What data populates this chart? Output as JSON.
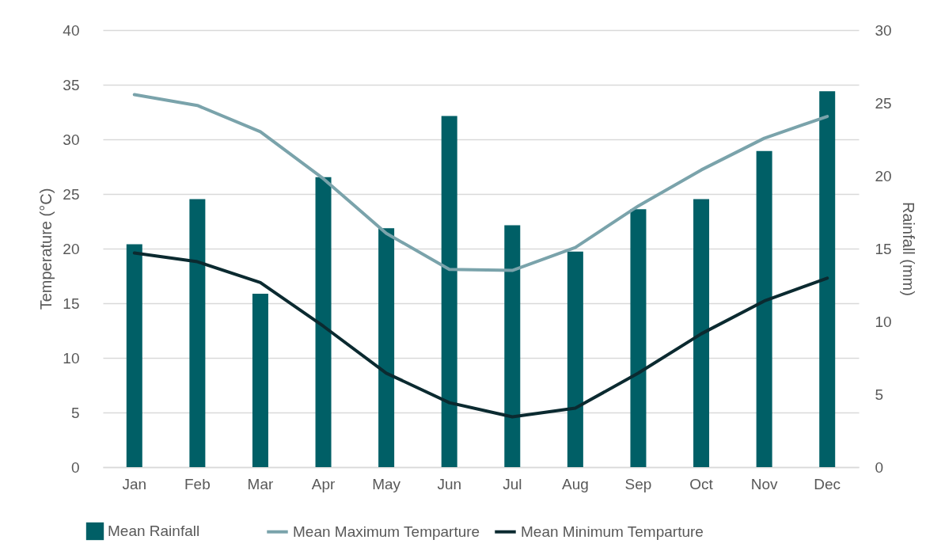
{
  "chart_data": {
    "type": "bar",
    "categories": [
      "Jan",
      "Feb",
      "Mar",
      "Apr",
      "May",
      "Jun",
      "Jul",
      "Aug",
      "Sep",
      "Oct",
      "Nov",
      "Dec"
    ],
    "ylabel": "Temperature  (°C)",
    "y2label": "Rainfall (mm)",
    "ylim": [
      0,
      40
    ],
    "yticks": [
      0,
      5,
      10,
      15,
      20,
      25,
      30,
      35,
      40
    ],
    "y2lim": [
      0,
      30
    ],
    "y2ticks": [
      0,
      5,
      10,
      15,
      20,
      25,
      30
    ],
    "grid": "y",
    "legend": "bottom",
    "marker": "none",
    "line_style": "solid",
    "series": [
      {
        "name": "Mean Rainfall",
        "axis": "y2",
        "color": "#005f66",
        "values": [
          15.3,
          18.4,
          11.9,
          19.9,
          16.4,
          24.1,
          16.6,
          14.8,
          17.7,
          18.4,
          21.7,
          25.8
        ]
      },
      {
        "name": "Mean Maximum Temparture",
        "type": "line",
        "color": "#7aa3ab",
        "values": [
          34.1,
          33.1,
          30.7,
          26.4,
          21.4,
          18.1,
          18.0,
          20.1,
          23.9,
          27.2,
          30.1,
          32.1
        ]
      },
      {
        "name": "Mean Minimum Temparture",
        "type": "line",
        "color": "#0b2a30",
        "values": [
          19.6,
          18.8,
          16.9,
          12.9,
          8.6,
          5.9,
          4.6,
          5.4,
          8.6,
          12.2,
          15.2,
          17.3
        ]
      }
    ]
  }
}
